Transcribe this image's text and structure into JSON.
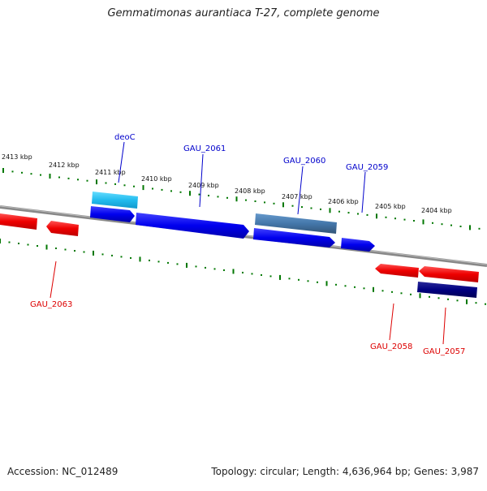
{
  "title": "Gemmatimonas aurantiaca T-27, complete genome",
  "footer": {
    "accession": "Accession: NC_012489",
    "summary": "Topology: circular; Length: 4,636,964 bp; Genes: 3,987"
  },
  "ruler_labels": [
    "2413 kbp",
    "2412 kbp",
    "2411 kbp",
    "2410 kbp",
    "2409 kbp",
    "2408 kbp",
    "2407 kbp",
    "2406 kbp",
    "2405 kbp",
    "2404 kbp"
  ],
  "gene_labels": {
    "deoC": "deoC",
    "gau2061": "GAU_2061",
    "gau2060": "GAU_2060",
    "gau2059": "GAU_2059",
    "gau2063": "GAU_2063",
    "gau2058": "GAU_2058",
    "gau2057": "GAU_2057"
  },
  "colors": {
    "forward_cds": "#0000ee",
    "reverse_cds": "#ee0000",
    "rna_light": "#33bbee",
    "steel": "#4477aa",
    "navy": "#000080",
    "backbone": "#888888",
    "tick": "#007700"
  }
}
